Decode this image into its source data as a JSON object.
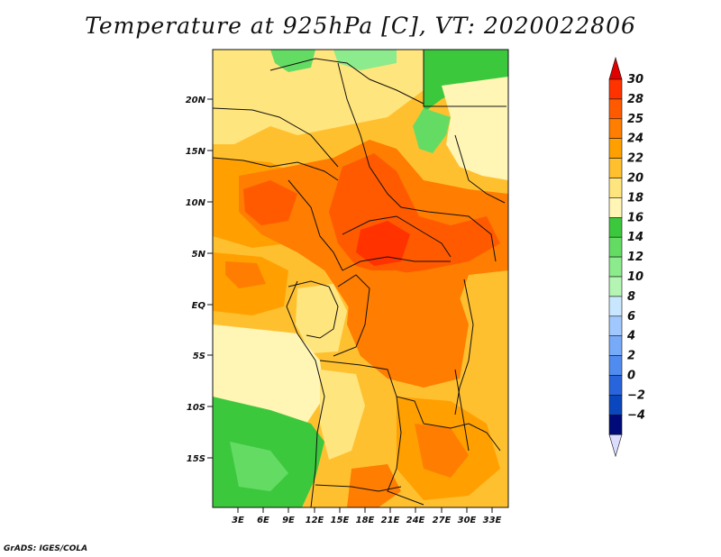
{
  "title": "Temperature at 925hPa [C], VT: 2020022806",
  "credit": "GrADS: IGES/COLA",
  "map": {
    "lat_labels": [
      "20N",
      "15N",
      "10N",
      "5N",
      "EQ",
      "5S",
      "10S",
      "15S"
    ],
    "lon_labels": [
      "3E",
      "6E",
      "9E",
      "12E",
      "15E",
      "18E",
      "21E",
      "24E",
      "27E",
      "30E",
      "33E"
    ]
  },
  "colorbar": {
    "levels": [
      "30",
      "28",
      "25",
      "24",
      "22",
      "20",
      "18",
      "16",
      "14",
      "12",
      "10",
      "8",
      "6",
      "4",
      "2",
      "0",
      "−2",
      "−4"
    ],
    "colors": [
      "#ff3200",
      "#ff5a00",
      "#ff7d00",
      "#ffa000",
      "#ffc030",
      "#ffe57d",
      "#fff5b4",
      "#3cc83c",
      "#64dc64",
      "#8ceb8c",
      "#b4f5b4",
      "#c8e6ff",
      "#a0c8ff",
      "#78aafa",
      "#508cf0",
      "#2864dc",
      "#0a46be",
      "#000a78"
    ],
    "top_arrow_color": "#e10000",
    "bottom_arrow_color": "#dcdcff"
  },
  "palette": {
    "green": "#3cc83c",
    "light_green": "#8ceb8c",
    "cream": "#fff5b4",
    "pale_yellow": "#ffe57d",
    "light_orange": "#ffc030",
    "orange": "#ffa000",
    "dark_orange": "#ff7d00",
    "red_orange": "#ff5a00",
    "red": "#ff3200"
  }
}
